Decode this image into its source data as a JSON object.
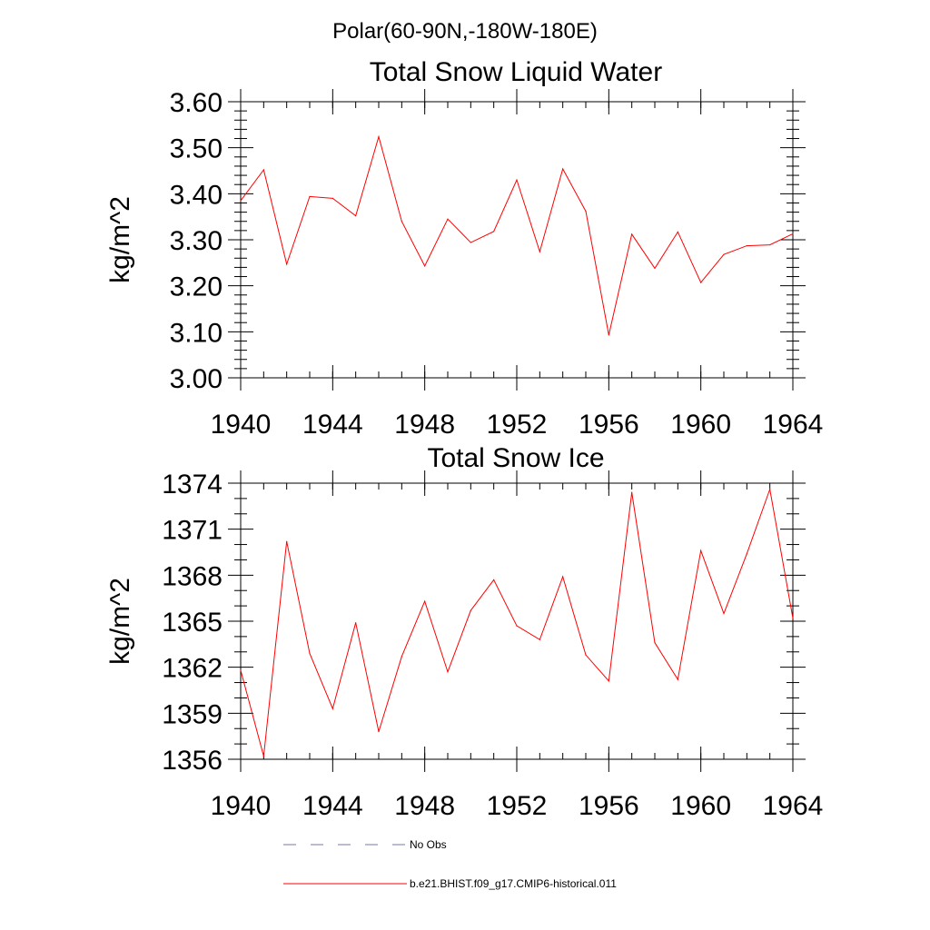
{
  "figure": {
    "supertitle": "Polar(60-90N,-180W-180E)",
    "series_color": "#ff0000",
    "obs_color": "#7777aa"
  },
  "legend": {
    "entries": [
      {
        "label": "No Obs",
        "style": "dashed"
      },
      {
        "label": "b.e21.BHIST.f09_g17.CMIP6-historical.011",
        "style": "solid"
      }
    ]
  },
  "chart_data": [
    {
      "type": "line",
      "title": "Total Snow Liquid Water",
      "xlabel": "",
      "ylabel": "kg/m^2",
      "xlim": [
        1940,
        1964
      ],
      "ylim": [
        3.0,
        3.6
      ],
      "xticks": [
        "1940",
        "1944",
        "1948",
        "1952",
        "1956",
        "1960",
        "1964"
      ],
      "yticks": [
        "3.00",
        "3.10",
        "3.20",
        "3.30",
        "3.40",
        "3.50",
        "3.60"
      ],
      "x": [
        1940,
        1941,
        1942,
        1943,
        1944,
        1945,
        1946,
        1947,
        1948,
        1949,
        1950,
        1951,
        1952,
        1953,
        1954,
        1955,
        1956,
        1957,
        1958,
        1959,
        1960,
        1961,
        1962,
        1963,
        1964
      ],
      "series": [
        {
          "name": "b.e21.BHIST.f09_g17.CMIP6-historical.011",
          "values": [
            3.385,
            3.452,
            3.247,
            3.394,
            3.39,
            3.352,
            3.524,
            3.34,
            3.243,
            3.345,
            3.294,
            3.318,
            3.43,
            3.274,
            3.454,
            3.362,
            3.093,
            3.312,
            3.238,
            3.317,
            3.207,
            3.268,
            3.287,
            3.289,
            3.313
          ]
        }
      ]
    },
    {
      "type": "line",
      "title": "Total Snow Ice",
      "xlabel": "",
      "ylabel": "kg/m^2",
      "xlim": [
        1940,
        1964
      ],
      "ylim": [
        1356,
        1374
      ],
      "xticks": [
        "1940",
        "1944",
        "1948",
        "1952",
        "1956",
        "1960",
        "1964"
      ],
      "yticks": [
        "1356",
        "1359",
        "1362",
        "1365",
        "1368",
        "1371",
        "1374"
      ],
      "x": [
        1940,
        1941,
        1942,
        1943,
        1944,
        1945,
        1946,
        1947,
        1948,
        1949,
        1950,
        1951,
        1952,
        1953,
        1954,
        1955,
        1956,
        1957,
        1958,
        1959,
        1960,
        1961,
        1962,
        1963,
        1964
      ],
      "series": [
        {
          "name": "b.e21.BHIST.f09_g17.CMIP6-historical.011",
          "values": [
            1361.8,
            1356.2,
            1370.2,
            1362.9,
            1359.3,
            1364.9,
            1357.8,
            1362.7,
            1366.3,
            1361.7,
            1365.7,
            1367.7,
            1364.7,
            1363.8,
            1367.9,
            1362.8,
            1361.1,
            1373.4,
            1363.6,
            1361.2,
            1369.6,
            1365.5,
            1369.4,
            1373.6,
            1365.2
          ]
        }
      ]
    }
  ]
}
